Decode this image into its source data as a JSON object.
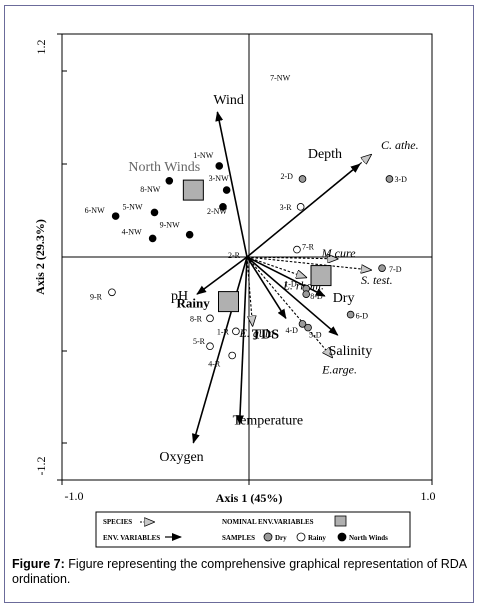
{
  "figure": {
    "caption_label": "Figure 7:",
    "caption_text": "Figure representing the comprehensive graphical representation of RDA ordination."
  },
  "chart_data": {
    "type": "scatter",
    "subtype": "RDA biplot",
    "xlabel": "Axis 1 (45%)",
    "ylabel": "Axis 2 (29.3%)",
    "xlim": [
      -1.0,
      1.0
    ],
    "ylim": [
      -1.2,
      1.2
    ],
    "x_tick_labels": [
      "-1.0",
      "1.0"
    ],
    "y_tick_labels": [
      "1.2",
      "-1.2"
    ],
    "env_variables": [
      {
        "label": "Wind",
        "x": -0.16,
        "y": 0.78
      },
      {
        "label": "Depth",
        "x": 0.61,
        "y": 0.5
      },
      {
        "label": "pH",
        "x": -0.27,
        "y": -0.2
      },
      {
        "label": "Dry",
        "x": 0.42,
        "y": -0.21
      },
      {
        "label": "TDS",
        "x": 0.21,
        "y": -0.33
      },
      {
        "label": "Salinity",
        "x": 0.49,
        "y": -0.42
      },
      {
        "label": "Temperature",
        "x": -0.04,
        "y": -0.9
      },
      {
        "label": "Oxygen",
        "x": -0.29,
        "y": -1.0
      }
    ],
    "species": [
      {
        "label": "C. athe.",
        "x": 0.67,
        "y": 0.55
      },
      {
        "label": "M.cure",
        "x": 0.49,
        "y": -0.01
      },
      {
        "label": "S. test.",
        "x": 0.67,
        "y": -0.07
      },
      {
        "label": "L. rhom.",
        "x": 0.32,
        "y": -0.11
      },
      {
        "label": "E. gula",
        "x": 0.03,
        "y": -0.37
      },
      {
        "label": "E.arge.",
        "x": 0.46,
        "y": -0.54
      }
    ],
    "nominal_env_variables": [
      {
        "label": "North Winds",
        "x": -0.29,
        "y": 0.36
      },
      {
        "label": "Dry",
        "x": 0.4,
        "y": -0.1
      },
      {
        "label": "Rainy",
        "x": -0.1,
        "y": -0.24
      }
    ],
    "samples": [
      {
        "label": "7-NW",
        "x": 0.19,
        "y": 0.97,
        "group": "North Winds",
        "marker": "none"
      },
      {
        "label": "1-NW",
        "x": -0.15,
        "y": 0.49,
        "group": "North Winds"
      },
      {
        "label": "8-NW",
        "x": -0.42,
        "y": 0.41,
        "group": "North Winds"
      },
      {
        "label": "3-NW",
        "x": -0.11,
        "y": 0.36,
        "group": "North Winds"
      },
      {
        "label": "5-NW",
        "x": -0.5,
        "y": 0.24,
        "group": "North Winds"
      },
      {
        "label": "6-NW",
        "x": -0.71,
        "y": 0.22,
        "group": "North Winds"
      },
      {
        "label": "2-NW",
        "x": -0.13,
        "y": 0.27,
        "group": "North Winds"
      },
      {
        "label": "9-NW",
        "x": -0.31,
        "y": 0.12,
        "group": "North Winds"
      },
      {
        "label": "4-NW",
        "x": -0.51,
        "y": 0.1,
        "group": "North Winds"
      },
      {
        "label": "2-D",
        "x": 0.3,
        "y": 0.42,
        "group": "Dry"
      },
      {
        "label": "3-D",
        "x": 0.77,
        "y": 0.42,
        "group": "Dry"
      },
      {
        "label": "7-D",
        "x": 0.73,
        "y": -0.06,
        "group": "Dry"
      },
      {
        "label": "1-D",
        "x": 0.32,
        "y": -0.17,
        "group": "Dry"
      },
      {
        "label": "8-D",
        "x": 0.32,
        "y": -0.2,
        "group": "Dry"
      },
      {
        "label": "6-D",
        "x": 0.56,
        "y": -0.31,
        "group": "Dry"
      },
      {
        "label": "4-D",
        "x": 0.3,
        "y": -0.36,
        "group": "Dry"
      },
      {
        "label": "5-D",
        "x": 0.33,
        "y": -0.38,
        "group": "Dry"
      },
      {
        "label": "3-R",
        "x": 0.29,
        "y": 0.27,
        "group": "Rainy"
      },
      {
        "label": "7-R",
        "x": 0.27,
        "y": 0.04,
        "group": "Rainy"
      },
      {
        "label": "2-R",
        "x": 0.0,
        "y": 0.0,
        "group": "Rainy",
        "marker": "none"
      },
      {
        "label": "9-R",
        "x": -0.73,
        "y": -0.19,
        "group": "Rainy"
      },
      {
        "label": "8-R",
        "x": -0.2,
        "y": -0.33,
        "group": "Rainy"
      },
      {
        "label": "1-R",
        "x": -0.06,
        "y": -0.4,
        "group": "Rainy"
      },
      {
        "label": "5-R",
        "x": -0.2,
        "y": -0.48,
        "group": "Rainy"
      },
      {
        "label": "4-R",
        "x": -0.08,
        "y": -0.53,
        "group": "Rainy"
      }
    ],
    "legend": {
      "position": "bottom",
      "species_label": "SPECIES",
      "env_label": "ENV. VARIABLES",
      "nominal_label": "NOMINAL ENV.VARIABLES",
      "samples_label": "SAMPLES",
      "dry_label": "Dry",
      "rainy_label": "Rainy",
      "north_label": "North Winds"
    },
    "colors": {
      "dry_sample": "#9a9a9a",
      "rainy_sample": "#ffffff",
      "north_sample": "#000000",
      "nominal_box": "#b0b0b0",
      "species_arrow": "#000000",
      "env_arrow": "#000000"
    }
  }
}
